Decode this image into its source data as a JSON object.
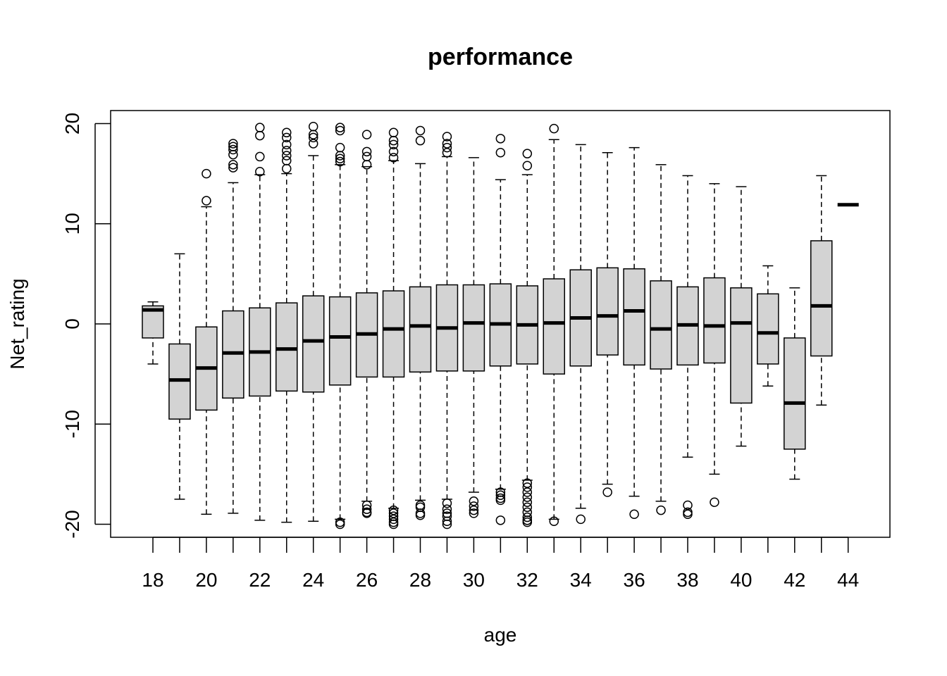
{
  "chart_data": {
    "type": "boxplot",
    "title": "performance",
    "xlabel": "age",
    "ylabel": "Net_rating",
    "ylim": [
      -21.3,
      21.3
    ],
    "y_ticks": [
      -20,
      -10,
      0,
      10,
      20
    ],
    "x_tick_labels": [
      "18",
      "20",
      "22",
      "24",
      "26",
      "28",
      "30",
      "32",
      "34",
      "36",
      "38",
      "40",
      "42",
      "44"
    ],
    "box_fill": "#d3d3d3",
    "grid": false,
    "boxes": [
      {
        "age": 18,
        "whisker_low": -4.0,
        "q1": -1.4,
        "median": 1.4,
        "q3": 1.8,
        "whisker_high": 2.2,
        "outliers": []
      },
      {
        "age": 19,
        "whisker_low": -17.5,
        "q1": -9.5,
        "median": -5.6,
        "q3": -2.0,
        "whisker_high": 7.0,
        "outliers": []
      },
      {
        "age": 20,
        "whisker_low": -19.0,
        "q1": -8.6,
        "median": -4.4,
        "q3": -0.3,
        "whisker_high": 11.7,
        "outliers": [
          12.3,
          15.0
        ]
      },
      {
        "age": 21,
        "whisker_low": -18.9,
        "q1": -7.4,
        "median": -2.9,
        "q3": 1.3,
        "whisker_high": 14.1,
        "outliers": [
          15.6,
          15.9,
          16.9,
          17.4,
          17.7,
          18.0
        ]
      },
      {
        "age": 22,
        "whisker_low": -19.6,
        "q1": -7.2,
        "median": -2.8,
        "q3": 1.6,
        "whisker_high": 14.9,
        "outliers": [
          15.2,
          16.7,
          18.8,
          19.6
        ]
      },
      {
        "age": 23,
        "whisker_low": -19.8,
        "q1": -6.7,
        "median": -2.5,
        "q3": 2.1,
        "whisker_high": 15.0,
        "outliers": [
          15.5,
          16.3,
          16.8,
          17.3,
          17.9,
          18.6,
          19.1
        ]
      },
      {
        "age": 24,
        "whisker_low": -19.7,
        "q1": -6.8,
        "median": -1.7,
        "q3": 2.8,
        "whisker_high": 16.8,
        "outliers": [
          18.0,
          18.6,
          18.9,
          19.7
        ]
      },
      {
        "age": 25,
        "whisker_low": -19.5,
        "q1": -6.1,
        "median": -1.3,
        "q3": 2.7,
        "whisker_high": 15.9,
        "outliers": [
          16.2,
          16.5,
          16.8,
          17.6,
          19.3,
          19.6,
          -19.8,
          -20.0
        ]
      },
      {
        "age": 26,
        "whisker_low": -17.7,
        "q1": -5.3,
        "median": -1.0,
        "q3": 3.1,
        "whisker_high": 15.7,
        "outliers": [
          15.9,
          16.7,
          17.2,
          18.9,
          -18.1,
          -18.5,
          -18.8,
          -18.9
        ]
      },
      {
        "age": 27,
        "whisker_low": -18.4,
        "q1": -5.3,
        "median": -0.5,
        "q3": 3.3,
        "whisker_high": 16.3,
        "outliers": [
          16.6,
          17.2,
          17.9,
          18.3,
          19.1,
          -18.6,
          -18.9,
          -19.2,
          -19.5,
          -19.8,
          -20.0
        ]
      },
      {
        "age": 28,
        "whisker_low": -17.6,
        "q1": -4.8,
        "median": -0.2,
        "q3": 3.7,
        "whisker_high": 16.0,
        "outliers": [
          18.3,
          19.3,
          -18.1,
          -18.3,
          -18.9,
          -19.1
        ]
      },
      {
        "age": 29,
        "whisker_low": -17.5,
        "q1": -4.7,
        "median": -0.4,
        "q3": 3.9,
        "whisker_high": 16.7,
        "outliers": [
          17.1,
          17.6,
          18.0,
          18.7,
          -17.9,
          -18.5,
          -18.9,
          -19.2,
          -19.7,
          -20.0
        ]
      },
      {
        "age": 30,
        "whisker_low": -16.8,
        "q1": -4.7,
        "median": 0.1,
        "q3": 3.9,
        "whisker_high": 16.6,
        "outliers": [
          -17.7,
          -18.2,
          -18.6,
          -18.9
        ]
      },
      {
        "age": 31,
        "whisker_low": -16.5,
        "q1": -4.2,
        "median": 0.0,
        "q3": 4.0,
        "whisker_high": 14.4,
        "outliers": [
          17.1,
          18.5,
          -16.8,
          -17.1,
          -17.4,
          -17.6,
          -19.6
        ]
      },
      {
        "age": 32,
        "whisker_low": -15.6,
        "q1": -4.0,
        "median": -0.1,
        "q3": 3.8,
        "whisker_high": 14.9,
        "outliers": [
          15.8,
          17.0,
          -15.9,
          -16.3,
          -16.8,
          -17.3,
          -17.8,
          -18.3,
          -18.8,
          -19.3,
          -19.6,
          -19.8
        ]
      },
      {
        "age": 33,
        "whisker_low": -19.5,
        "q1": -5.0,
        "median": 0.1,
        "q3": 4.5,
        "whisker_high": 18.4,
        "outliers": [
          19.5,
          -19.7
        ]
      },
      {
        "age": 34,
        "whisker_low": -18.4,
        "q1": -4.2,
        "median": 0.6,
        "q3": 5.4,
        "whisker_high": 17.9,
        "outliers": [
          -19.5
        ]
      },
      {
        "age": 35,
        "whisker_low": -16.0,
        "q1": -3.1,
        "median": 0.8,
        "q3": 5.6,
        "whisker_high": 17.1,
        "outliers": [
          -16.8
        ]
      },
      {
        "age": 36,
        "whisker_low": -17.2,
        "q1": -4.1,
        "median": 1.3,
        "q3": 5.5,
        "whisker_high": 17.6,
        "outliers": [
          -19.0
        ]
      },
      {
        "age": 37,
        "whisker_low": -17.7,
        "q1": -4.5,
        "median": -0.5,
        "q3": 4.3,
        "whisker_high": 15.9,
        "outliers": [
          -18.6
        ]
      },
      {
        "age": 38,
        "whisker_low": -13.3,
        "q1": -4.1,
        "median": -0.1,
        "q3": 3.7,
        "whisker_high": 14.8,
        "outliers": [
          -18.1,
          -18.8,
          -19.0
        ]
      },
      {
        "age": 39,
        "whisker_low": -15.0,
        "q1": -3.9,
        "median": -0.2,
        "q3": 4.6,
        "whisker_high": 14.0,
        "outliers": [
          -17.8
        ]
      },
      {
        "age": 40,
        "whisker_low": -12.2,
        "q1": -7.9,
        "median": 0.1,
        "q3": 3.6,
        "whisker_high": 13.7,
        "outliers": []
      },
      {
        "age": 41,
        "whisker_low": -6.2,
        "q1": -4.0,
        "median": -0.9,
        "q3": 3.0,
        "whisker_high": 5.8,
        "outliers": []
      },
      {
        "age": 42,
        "whisker_low": -15.5,
        "q1": -12.5,
        "median": -7.9,
        "q3": -1.4,
        "whisker_high": 3.6,
        "outliers": []
      },
      {
        "age": 43,
        "whisker_low": -8.1,
        "q1": -3.2,
        "median": 1.8,
        "q3": 8.3,
        "whisker_high": 14.8,
        "outliers": []
      },
      {
        "age": 44,
        "whisker_low": 11.9,
        "q1": 11.9,
        "median": 11.9,
        "q3": 11.9,
        "whisker_high": 11.9,
        "outliers": []
      }
    ]
  }
}
